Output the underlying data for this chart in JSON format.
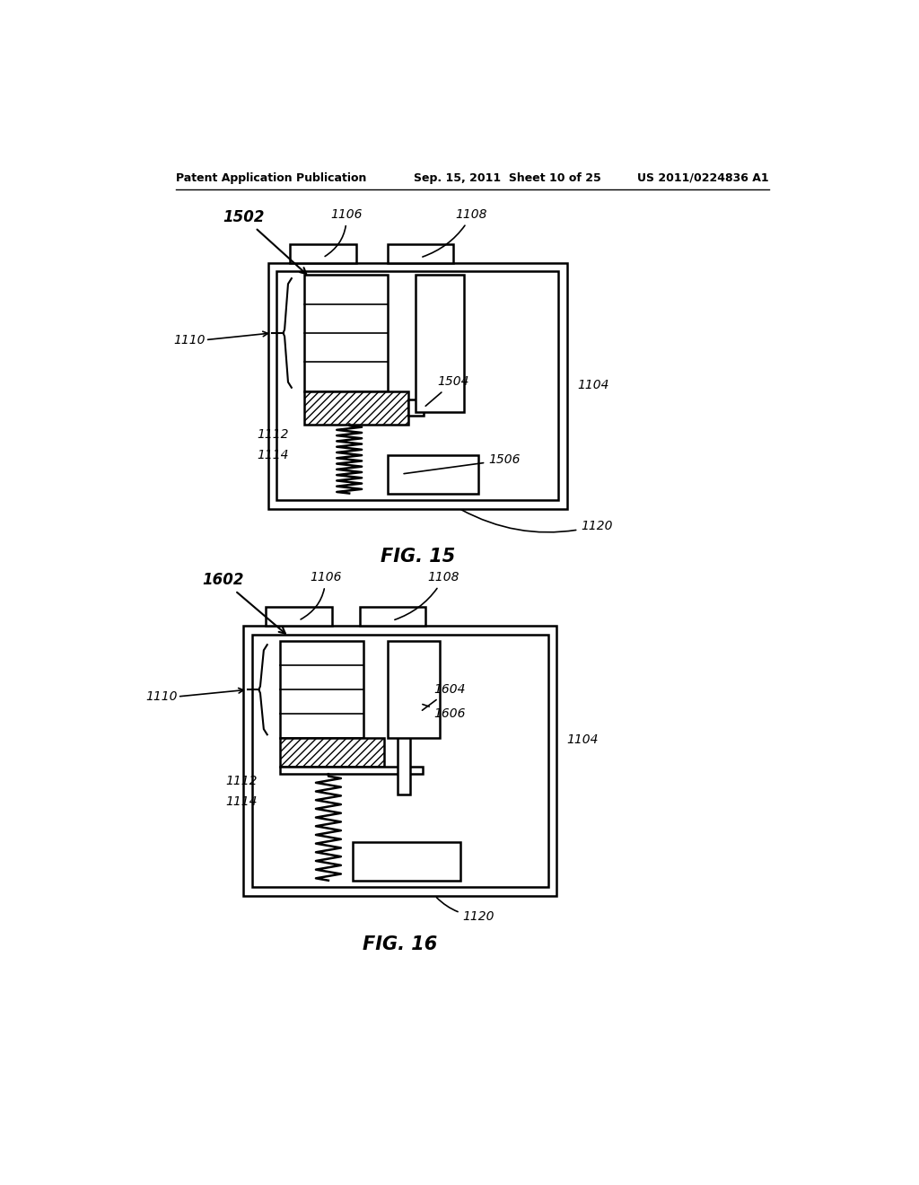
{
  "background_color": "#ffffff",
  "header_left": "Patent Application Publication",
  "header_mid": "Sep. 15, 2011  Sheet 10 of 25",
  "header_right": "US 2011/0224836 A1",
  "fig15_label": "FIG. 15",
  "fig16_label": "FIG. 16",
  "line_color": "#000000"
}
